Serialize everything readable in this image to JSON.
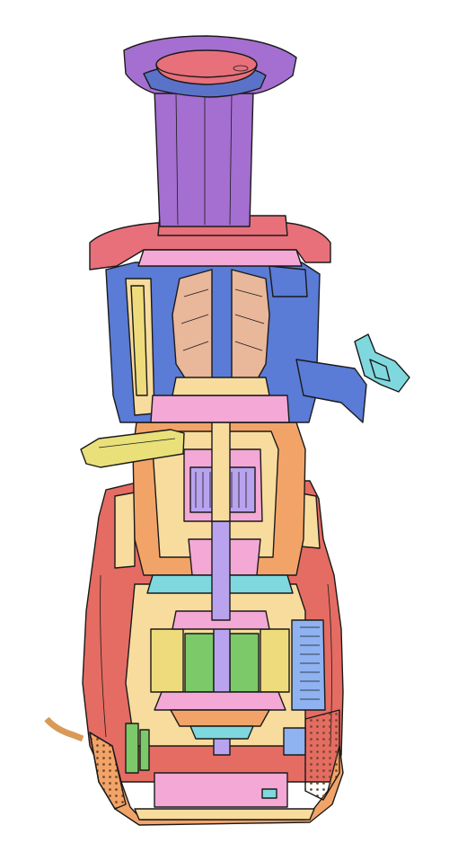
{
  "diagram": {
    "caption": "",
    "colors": {
      "hopper_purple": "#a46fd0",
      "lid_red": "#e8707a",
      "lid_blue": "#5b72c9",
      "chamber_blue": "#5a7bd6",
      "auger_tan": "#e9b79a",
      "shaft_green": "#b7e37a",
      "spout_yellow": "#e9e07a",
      "body_orange": "#f2a468",
      "body_cream": "#f7dc9e",
      "base_red": "#e56c63",
      "gear_pink": "#f3a8d6",
      "motor_yellow": "#eedc7c",
      "coil_green": "#7cc96a",
      "rotor_violet": "#b9a3ee",
      "heatsink_blue": "#8fb2f0",
      "cap_cyan": "#7fd8de",
      "cord_tan": "#d99a57"
    },
    "parts": [
      "feed-hopper",
      "pusher-cap",
      "juicing-lid",
      "juicing-chamber",
      "auger",
      "drive-shaft",
      "pulp-outlet",
      "juice-spout",
      "gear-reduction",
      "motor",
      "heatsink",
      "motor-housing",
      "base",
      "power-cord"
    ]
  }
}
